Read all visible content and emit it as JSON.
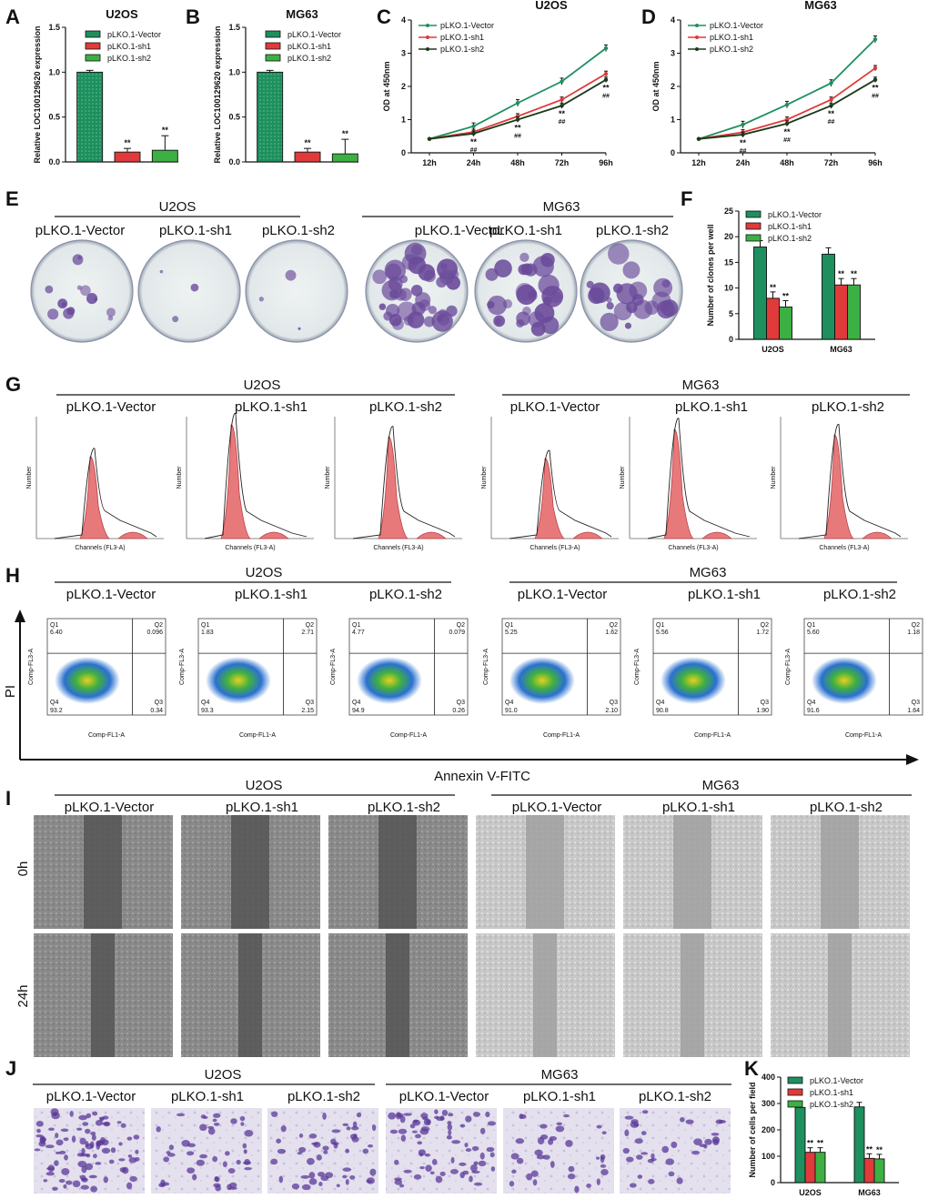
{
  "panels": {
    "A": "A",
    "B": "B",
    "C": "C",
    "D": "D",
    "E": "E",
    "F": "F",
    "G": "G",
    "H": "H",
    "I": "I",
    "J": "J",
    "K": "K"
  },
  "groups": [
    "pLKO.1-Vector",
    "pLKO.1-sh1",
    "pLKO.1-sh2"
  ],
  "cells": [
    "U2OS",
    "MG63"
  ],
  "colors": {
    "vector": "#1e8f5e",
    "sh1": "#e03a3a",
    "sh2": "#3cb043",
    "sh2line": "#1a3a1a"
  },
  "sig": {
    "star": "**",
    "hash": "##"
  },
  "chart_data": [
    {
      "id": "A",
      "type": "bar",
      "title": "U2OS",
      "ylabel": "Relative LOC100129620 expression",
      "categories": [
        "pLKO.1-Vector",
        "pLKO.1-sh1",
        "pLKO.1-sh2"
      ],
      "values": [
        1.0,
        0.11,
        0.13
      ],
      "ylim": [
        0,
        1.5
      ],
      "yticks": [
        "0.0",
        "0.5",
        "1.0",
        "1.5"
      ],
      "legend": "top-right"
    },
    {
      "id": "B",
      "type": "bar",
      "title": "MG63",
      "ylabel": "Relative LOC100129620 expression",
      "categories": [
        "pLKO.1-Vector",
        "pLKO.1-sh1",
        "pLKO.1-sh2"
      ],
      "values": [
        1.0,
        0.11,
        0.09
      ],
      "ylim": [
        0,
        1.5
      ],
      "yticks": [
        "0.0",
        "0.5",
        "1.0",
        "1.5"
      ],
      "legend": "top-right"
    },
    {
      "id": "C",
      "type": "line",
      "title": "U2OS",
      "ylabel": "OD at 450nm",
      "x": [
        "12h",
        "24h",
        "48h",
        "72h",
        "96h"
      ],
      "series": [
        {
          "name": "pLKO.1-Vector",
          "values": [
            0.42,
            0.8,
            1.5,
            2.15,
            3.15
          ]
        },
        {
          "name": "pLKO.1-sh1",
          "values": [
            0.42,
            0.63,
            1.1,
            1.6,
            2.38
          ]
        },
        {
          "name": "pLKO.1-sh2",
          "values": [
            0.42,
            0.58,
            1.0,
            1.42,
            2.2
          ]
        }
      ],
      "ylim": [
        0,
        4
      ],
      "yticks": [
        "0",
        "1",
        "2",
        "3",
        "4"
      ],
      "legend": "top-left"
    },
    {
      "id": "D",
      "type": "line",
      "title": "MG63",
      "ylabel": "OD at 450nm",
      "x": [
        "12h",
        "24h",
        "48h",
        "72h",
        "96h"
      ],
      "series": [
        {
          "name": "pLKO.1-Vector",
          "values": [
            0.42,
            0.85,
            1.45,
            2.1,
            3.42
          ]
        },
        {
          "name": "pLKO.1-sh1",
          "values": [
            0.42,
            0.62,
            1.0,
            1.6,
            2.55
          ]
        },
        {
          "name": "pLKO.1-sh2",
          "values": [
            0.42,
            0.55,
            0.88,
            1.42,
            2.2
          ]
        }
      ],
      "ylim": [
        0,
        4
      ],
      "yticks": [
        "0",
        "1",
        "2",
        "3",
        "4"
      ],
      "legend": "top-left"
    },
    {
      "id": "F",
      "type": "bar",
      "ylabel": "Number of clones per well",
      "categories": [
        "U2OS",
        "MG63"
      ],
      "series": [
        {
          "name": "pLKO.1-Vector",
          "values": [
            18,
            16.6
          ]
        },
        {
          "name": "pLKO.1-sh1",
          "values": [
            8,
            10.6
          ]
        },
        {
          "name": "pLKO.1-sh2",
          "values": [
            6.3,
            10.6
          ]
        }
      ],
      "ylim": [
        0,
        25
      ],
      "yticks": [
        "0",
        "5",
        "10",
        "15",
        "20",
        "25"
      ],
      "legend": "top-right"
    },
    {
      "id": "K",
      "type": "bar",
      "ylabel": "Number of cells per field",
      "categories": [
        "U2OS",
        "MG63"
      ],
      "series": [
        {
          "name": "pLKO.1-Vector",
          "values": [
            285,
            287
          ]
        },
        {
          "name": "pLKO.1-sh1",
          "values": [
            115,
            92
          ]
        },
        {
          "name": "pLKO.1-sh2",
          "values": [
            115,
            90
          ]
        }
      ],
      "ylim": [
        0,
        400
      ],
      "yticks": [
        "0",
        "100",
        "200",
        "300",
        "400"
      ],
      "legend": "top-right"
    }
  ],
  "flow": {
    "xlabel": "Annexin V-FITC",
    "ylabel": "PI",
    "axis_x": "Comp-FL1-A",
    "axis_y": "Comp-FL3-A",
    "quads": [
      {
        "q1": "6.40",
        "q2": "0.096",
        "q3": "0.34",
        "q4": "93.2"
      },
      {
        "q1": "1.83",
        "q2": "2.71",
        "q3": "2.15",
        "q4": "93.3"
      },
      {
        "q1": "4.77",
        "q2": "0.079",
        "q3": "0.26",
        "q4": "94.9"
      },
      {
        "q1": "5.25",
        "q2": "1.62",
        "q3": "2.10",
        "q4": "91.0"
      },
      {
        "q1": "5.56",
        "q2": "1.72",
        "q3": "1.90",
        "q4": "90.8"
      },
      {
        "q1": "5.60",
        "q2": "1.18",
        "q3": "1.64",
        "q4": "91.6"
      }
    ],
    "qnames": [
      "Q1",
      "Q2",
      "Q3",
      "Q4"
    ]
  },
  "cycle": {
    "xlabel": "Channels (FL3-A)",
    "ylabel": "Number"
  },
  "wound": {
    "rows": [
      "0h",
      "24h"
    ]
  }
}
